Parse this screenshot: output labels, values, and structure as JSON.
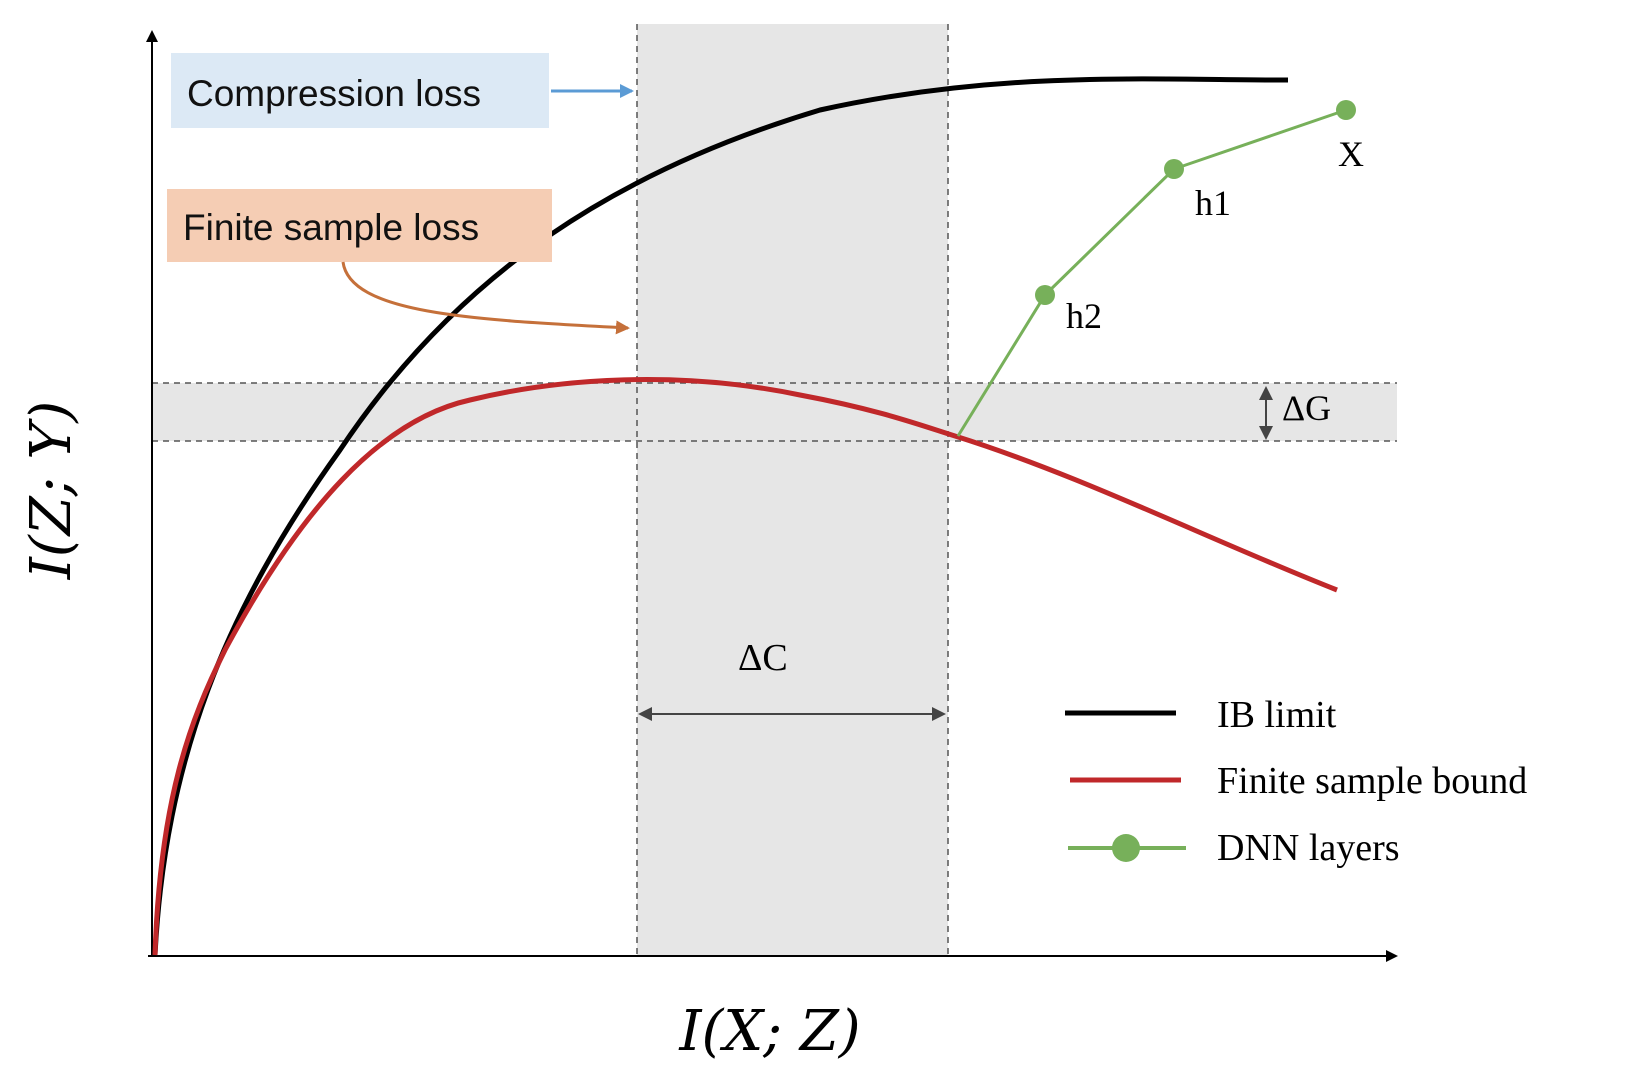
{
  "axes": {
    "x_label": "I(X; Z)",
    "y_label": "I(Z; Y)"
  },
  "callouts": {
    "compression_loss": {
      "text": "Compression loss",
      "box_color": "#dce9f5",
      "arrow_color": "#5b9bd5"
    },
    "finite_sample_loss": {
      "text": "Finite sample loss",
      "box_color": "#f5cdb4",
      "arrow_color": "#c5703a"
    }
  },
  "annotations": {
    "delta_c": "ΔC",
    "delta_g": "ΔG"
  },
  "points": {
    "x": "X",
    "h1": "h1",
    "h2": "h2"
  },
  "legend": {
    "items": [
      {
        "label": "IB limit",
        "color": "#000000",
        "marker": false
      },
      {
        "label": "Finite sample bound",
        "color": "#c0282a",
        "marker": false
      },
      {
        "label": "DNN layers",
        "color": "#77b05a",
        "marker": true
      }
    ]
  },
  "colors": {
    "ib_limit": "#000000",
    "finite_sample_bound": "#c0282a",
    "dnn_layers": "#77b05a",
    "shaded_band": "#e6e6e6",
    "dashed_line": "#555555"
  }
}
